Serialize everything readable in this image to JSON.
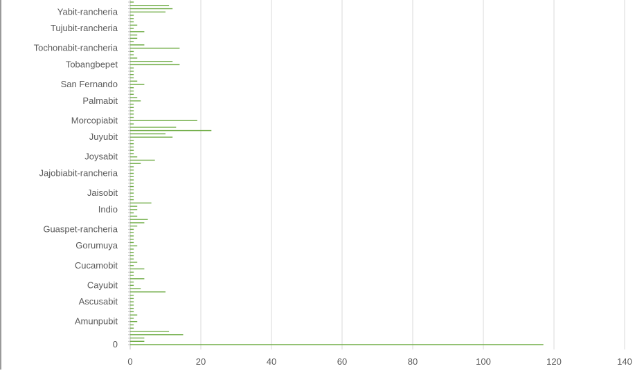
{
  "chart_data": {
    "type": "bar",
    "orientation": "horizontal",
    "title": "",
    "xlabel": "",
    "ylabel": "",
    "xlim": [
      0,
      140
    ],
    "x_ticks": [
      "0",
      "20",
      "40",
      "60",
      "80",
      "100",
      "120",
      "140"
    ],
    "grid": "vertical",
    "legend": "none",
    "bar_color": "#70AD47",
    "grid_color": "#D9D9D9",
    "categories": [
      "0",
      "",
      "",
      "",
      "",
      "",
      "",
      "Amunpubit",
      "",
      "",
      "",
      "",
      "",
      "Ascusabit",
      "",
      "",
      "",
      "",
      "Cayubit",
      "",
      "",
      "",
      "",
      "",
      "Cucamobit",
      "",
      "",
      "",
      "",
      "",
      "Gorumuya",
      "",
      "",
      "",
      "",
      "Guaspet-rancheria",
      "",
      "",
      "",
      "",
      "",
      "Indio",
      "",
      "",
      "",
      "",
      "Jaisobit",
      "",
      "",
      "",
      "",
      "",
      "Jajobiabit-rancheria",
      "",
      "",
      "",
      "",
      "Joysabit",
      "",
      "",
      "",
      "",
      "",
      "Juyubit",
      "",
      "",
      "",
      "",
      "Morcopiabit",
      "",
      "",
      "",
      "",
      "",
      "Palmabit",
      "",
      "",
      "",
      "",
      "San Fernando",
      "",
      "",
      "",
      "",
      "",
      "Tobangbepet",
      "",
      "",
      "",
      "",
      "Tochonabit-rancheria",
      "",
      "",
      "",
      "",
      "",
      "Tujubit-rancheria",
      "",
      "",
      "",
      "",
      "Yabit-rancheria",
      "",
      "",
      ""
    ],
    "values": [
      117,
      4,
      4,
      15,
      11,
      1,
      1,
      2,
      1,
      2,
      1,
      1,
      1,
      1,
      1,
      1,
      10,
      3,
      1,
      1,
      4,
      1,
      1,
      4,
      1,
      2,
      1,
      1,
      1,
      1,
      2,
      1,
      1,
      1,
      1,
      1,
      2,
      4,
      5,
      2,
      1,
      2,
      2,
      6,
      1,
      1,
      1,
      1,
      1,
      1,
      1,
      1,
      1,
      1,
      1,
      3,
      7,
      2,
      1,
      1,
      1,
      1,
      1,
      12,
      10,
      23,
      13,
      1,
      19,
      1,
      1,
      1,
      1,
      1,
      3,
      2,
      1,
      1,
      1,
      4,
      2,
      1,
      1,
      1,
      1,
      14,
      12,
      2,
      1,
      1,
      14,
      4,
      1,
      2,
      2,
      4,
      1,
      2,
      1,
      1,
      1,
      10,
      12,
      11,
      1
    ]
  }
}
